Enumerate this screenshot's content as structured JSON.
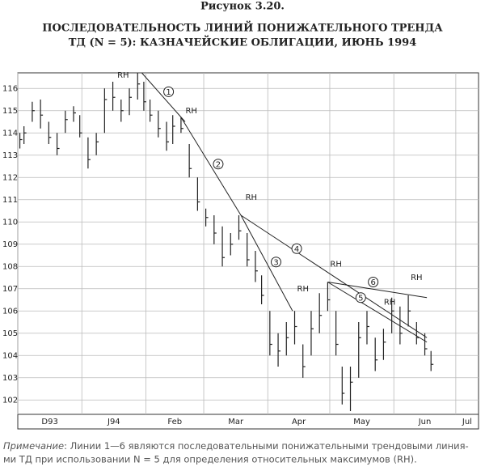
{
  "chart_data": {
    "type": "ohlc",
    "figure_label": "Рисунок 3.20.",
    "title_lines": [
      "ПОСЛЕДОВАТЕЛЬНОСТЬ ЛИНИЙ ПОНИЖАТЕЛЬНОГО ТРЕНДА",
      "ТД (N = 5): КАЗНАЧЕЙСКИЕ ОБЛИГАЦИИ, ИЮНЬ 1994"
    ],
    "x": [
      1,
      3,
      7,
      11,
      15,
      19,
      23,
      27,
      30,
      34,
      38,
      42,
      46,
      50,
      54,
      58,
      61,
      64,
      68,
      72,
      75,
      79,
      83,
      87,
      91,
      95,
      99,
      103,
      107,
      111,
      115,
      118,
      122,
      126,
      130,
      134,
      138,
      142,
      146,
      150,
      154,
      157,
      161,
      165,
      169,
      173,
      177,
      181,
      185,
      189,
      193,
      197,
      200
    ],
    "high": [
      114.0,
      114.3,
      115.4,
      115.5,
      114.5,
      114.0,
      115.0,
      115.2,
      114.8,
      113.8,
      114.0,
      116.0,
      116.3,
      115.5,
      116.0,
      116.7,
      116.3,
      115.5,
      115.0,
      114.5,
      114.8,
      114.7,
      113.5,
      112.0,
      110.6,
      110.3,
      109.8,
      109.5,
      110.3,
      109.5,
      108.7,
      107.6,
      106.0,
      105.0,
      105.5,
      106.0,
      104.5,
      106.0,
      106.8,
      107.3,
      106.0,
      103.5,
      103.5,
      105.5,
      106.0,
      104.8,
      105.2,
      106.6,
      106.2,
      106.7,
      105.5,
      105.0,
      104.2
    ],
    "low": [
      113.3,
      113.5,
      114.5,
      114.2,
      113.5,
      113.0,
      114.0,
      114.5,
      113.8,
      112.4,
      113.0,
      114.0,
      115.0,
      114.5,
      114.8,
      115.5,
      115.0,
      114.5,
      113.8,
      113.2,
      113.5,
      114.0,
      112.0,
      110.5,
      109.8,
      109.0,
      108.0,
      108.5,
      109.2,
      108.0,
      107.3,
      106.3,
      104.0,
      103.5,
      104.0,
      104.5,
      103.0,
      104.0,
      105.0,
      106.0,
      104.0,
      101.8,
      101.5,
      103.0,
      104.5,
      103.3,
      103.8,
      105.0,
      104.5,
      105.3,
      104.5,
      104.0,
      103.3
    ],
    "close": [
      113.7,
      114.0,
      115.0,
      114.8,
      113.8,
      113.3,
      114.6,
      114.9,
      114.0,
      112.8,
      113.6,
      115.5,
      115.6,
      115.0,
      115.6,
      116.2,
      115.4,
      114.8,
      114.2,
      113.6,
      114.3,
      114.2,
      112.4,
      110.9,
      110.2,
      109.5,
      108.4,
      109.0,
      109.6,
      108.3,
      107.8,
      106.7,
      104.5,
      104.2,
      104.8,
      105.3,
      103.5,
      105.2,
      105.8,
      106.5,
      104.5,
      102.3,
      102.8,
      104.8,
      105.3,
      103.8,
      104.6,
      106.0,
      105.0,
      106.0,
      104.8,
      104.3,
      103.6
    ],
    "trendlines": [
      {
        "label": "1",
        "x": [
          60,
          81
        ],
        "y": [
          116.7,
          114.5
        ],
        "label_x": 73,
        "label_y": 115.85
      },
      {
        "label": "2",
        "x": [
          79,
          108
        ],
        "y": [
          114.7,
          110.3
        ],
        "label_x": 97,
        "label_y": 112.6
      },
      {
        "label": "3",
        "x": [
          108,
          133
        ],
        "y": [
          110.3,
          106.0
        ],
        "label_x": 125,
        "label_y": 108.2
      },
      {
        "label": "4",
        "x": [
          108,
          198
        ],
        "y": [
          110.3,
          104.8
        ],
        "label_x": 135,
        "label_y": 108.8
      },
      {
        "label": "5",
        "x": [
          150,
          198
        ],
        "y": [
          107.3,
          104.6
        ],
        "label_x": 166,
        "label_y": 106.6
      },
      {
        "label": "6",
        "x": [
          150,
          198
        ],
        "y": [
          107.3,
          106.6
        ],
        "label_x": 172,
        "label_y": 107.3
      }
    ],
    "annotations": [
      {
        "text": "RH",
        "x": 51,
        "y": 116.6
      },
      {
        "text": "RH",
        "x": 84,
        "y": 115.0
      },
      {
        "text": "RH",
        "x": 113,
        "y": 111.1
      },
      {
        "text": "RH",
        "x": 138,
        "y": 107.0
      },
      {
        "text": "RH",
        "x": 154,
        "y": 108.1
      },
      {
        "text": "RH",
        "x": 180,
        "y": 106.4
      },
      {
        "text": "RH",
        "x": 193,
        "y": 107.5
      }
    ],
    "xlim": [
      0,
      223
    ],
    "xticks": [
      {
        "value": 0,
        "label": "D93"
      },
      {
        "value": 31,
        "label": "J94"
      },
      {
        "value": 62,
        "label": "Feb"
      },
      {
        "value": 90,
        "label": "Mar"
      },
      {
        "value": 121,
        "label": "Apr"
      },
      {
        "value": 151,
        "label": "May"
      },
      {
        "value": 182,
        "label": "Jun"
      },
      {
        "value": 212,
        "label": "Jul"
      }
    ],
    "ylim": [
      100.7,
      116.7
    ],
    "yticks": [
      102,
      103,
      104,
      105,
      106,
      107,
      108,
      109,
      110,
      111,
      112,
      113,
      114,
      115,
      116
    ],
    "grid": true,
    "color": "#222222",
    "note_label": "Примечание",
    "note_lines": [
      ": Линии 1—6 являются последовательными понижательными трендовыми линия-",
      "ми ТД при использовании N = 5 для определения относительных максимумов (RH)."
    ]
  }
}
